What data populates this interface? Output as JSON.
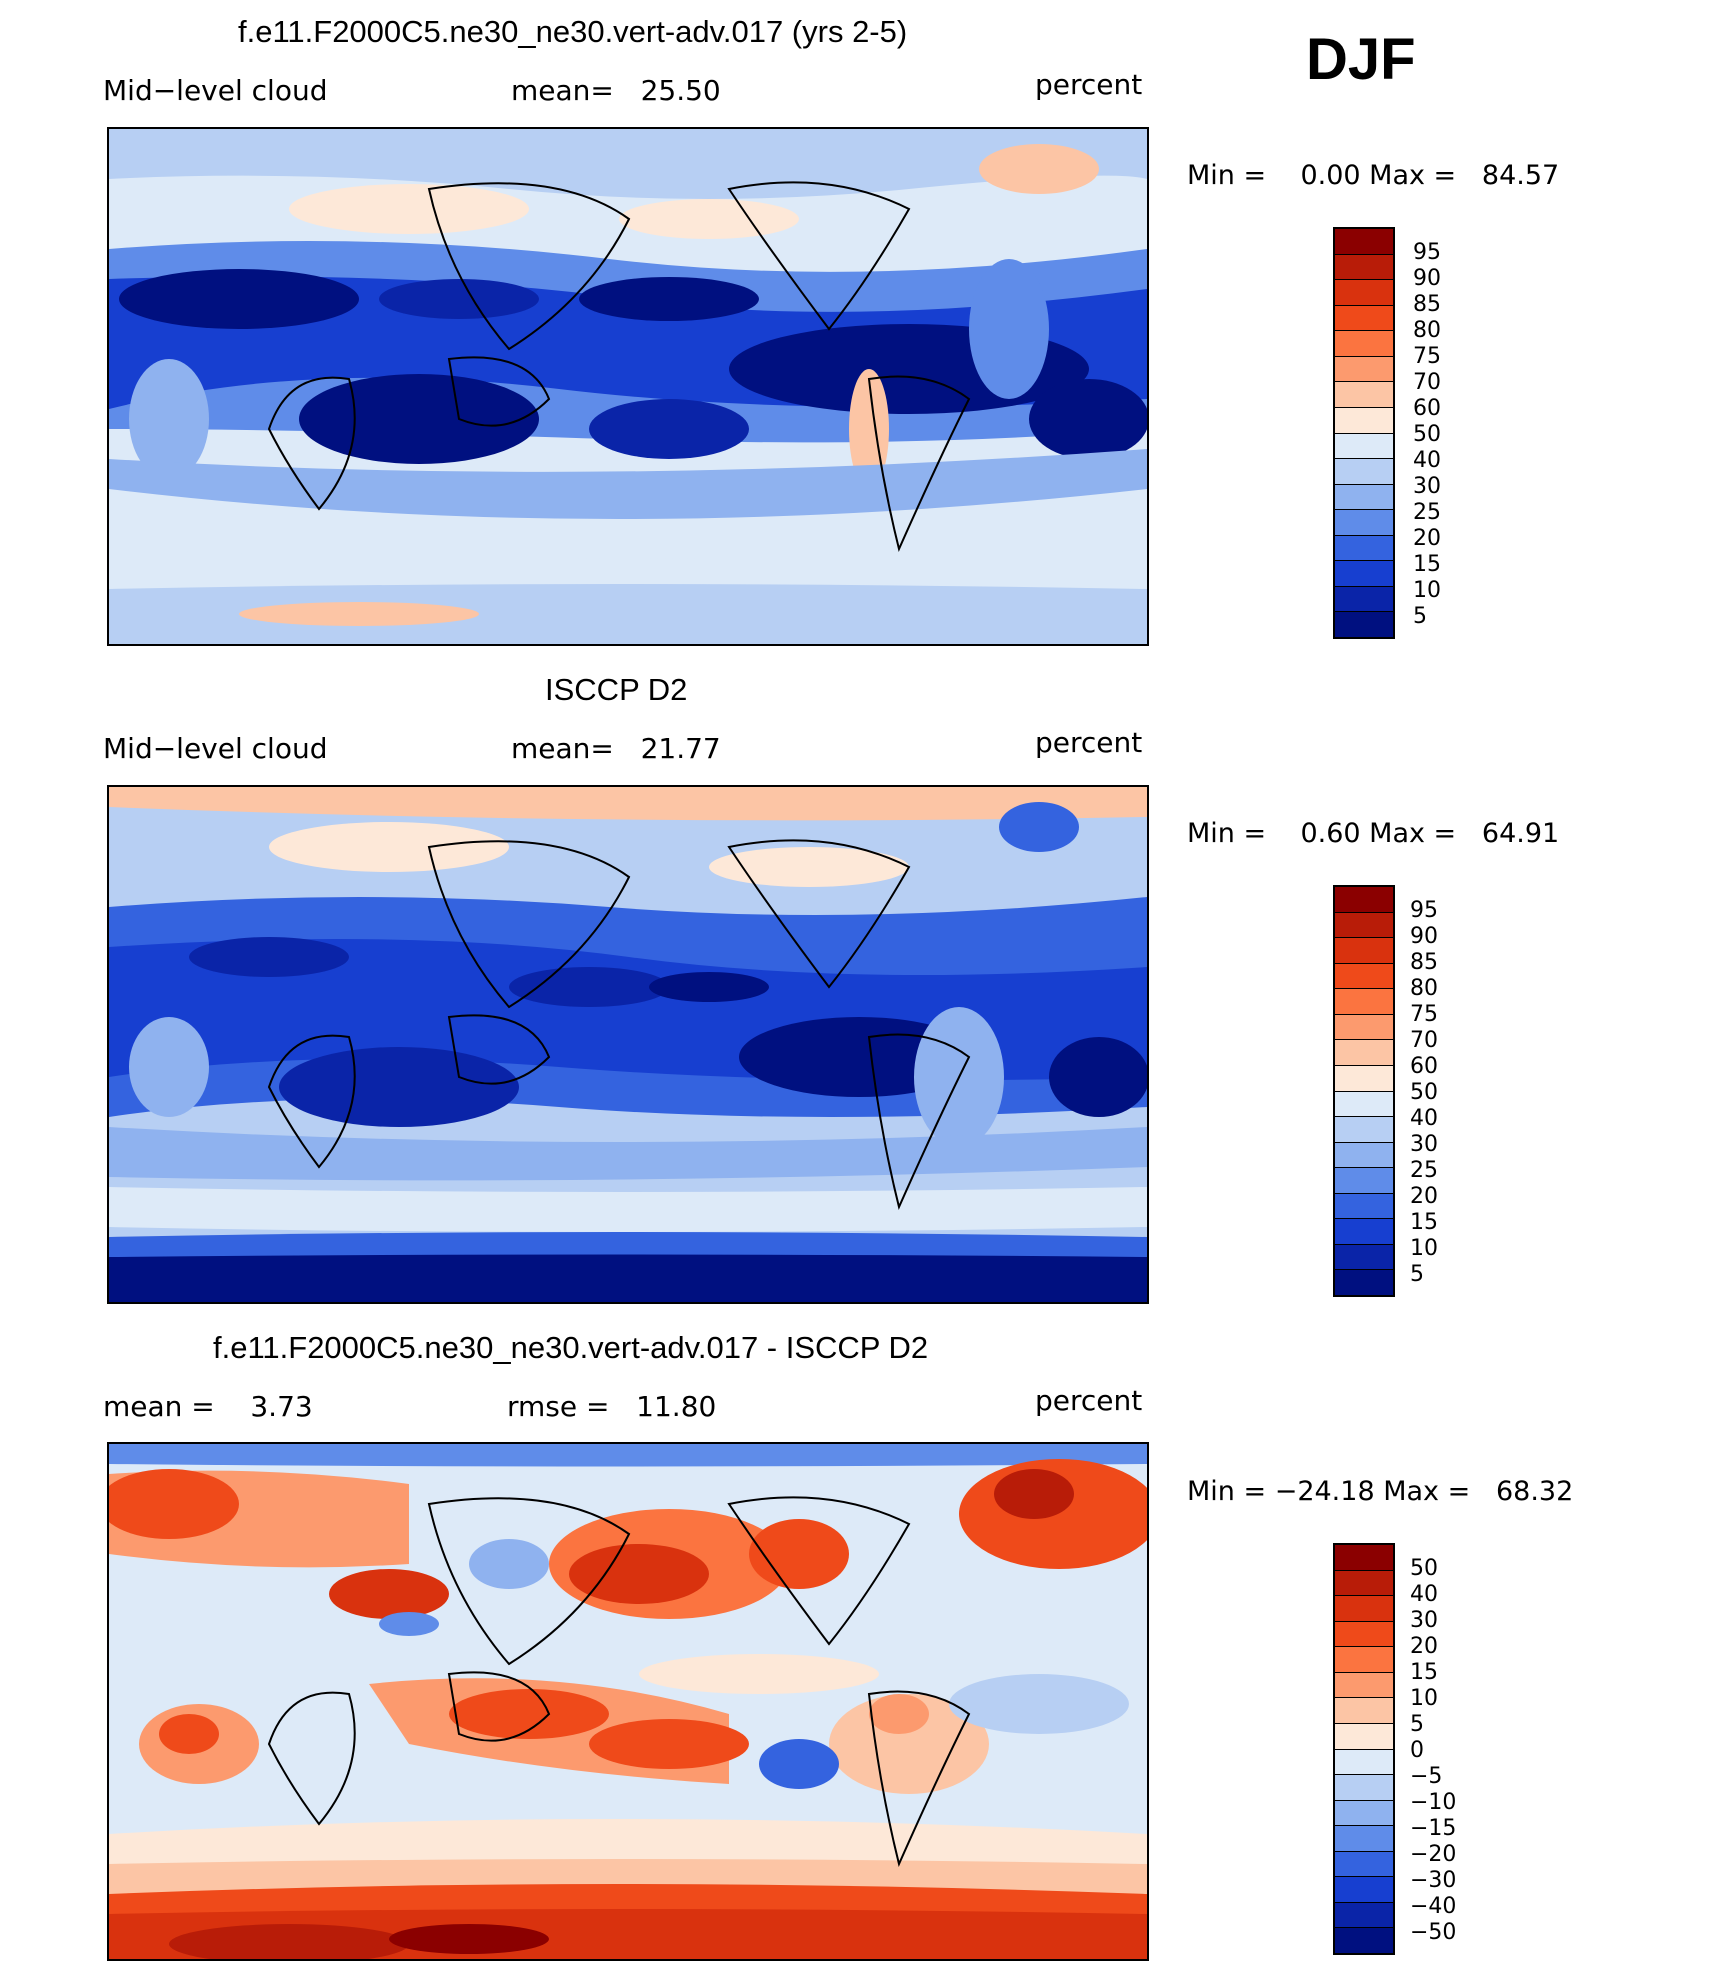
{
  "season": "DJF",
  "units": "percent",
  "panels": [
    {
      "title": "f.e11.F2000C5.ne30_ne30.vert-adv.017 (yrs 2-5)",
      "left_label": "Mid−level cloud",
      "center_label": "mean=   25.50",
      "right_label": "percent",
      "minmax": "Min =    0.00 Max =   84.57",
      "colorbar_labels": [
        "95",
        "90",
        "85",
        "80",
        "75",
        "70",
        "60",
        "50",
        "40",
        "30",
        "25",
        "20",
        "15",
        "10",
        "5"
      ]
    },
    {
      "title": "ISCCP D2",
      "left_label": "Mid−level cloud",
      "center_label": "mean=   21.77",
      "right_label": "percent",
      "minmax": "Min =    0.60 Max =   64.91",
      "colorbar_labels": [
        "95",
        "90",
        "85",
        "80",
        "75",
        "70",
        "60",
        "50",
        "40",
        "30",
        "25",
        "20",
        "15",
        "10",
        "5"
      ]
    },
    {
      "title": "f.e11.F2000C5.ne30_ne30.vert-adv.017 - ISCCP D2",
      "left_label": "mean =    3.73",
      "center_label": "rmse =   11.80",
      "right_label": "percent",
      "minmax": "Min = −24.18 Max =   68.32",
      "colorbar_labels": [
        "50",
        "40",
        "30",
        "20",
        "15",
        "10",
        "5",
        "0",
        "−5",
        "−10",
        "−15",
        "−20",
        "−30",
        "−40",
        "−50"
      ]
    }
  ],
  "colorbar_colors": [
    "#8b0000",
    "#b81c08",
    "#d9320e",
    "#ef4a1a",
    "#fb7440",
    "#fc9a6e",
    "#fcc5a5",
    "#fde8d8",
    "#ddeaf8",
    "#b7cff3",
    "#8fb2ef",
    "#5f8ce9",
    "#3463df",
    "#173fd0",
    "#0a24a8",
    "#001080"
  ]
}
